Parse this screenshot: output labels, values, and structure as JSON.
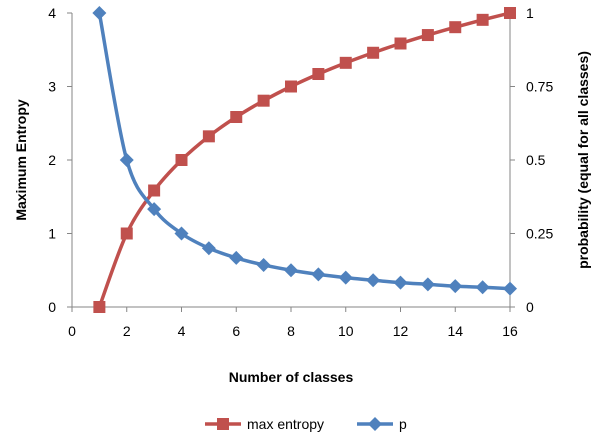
{
  "chart_data": {
    "type": "line",
    "xlabel": "Number of classes",
    "ylabel_left": "Maximum Entropy",
    "ylabel_right": "probability (equal for all classes)",
    "xlim": [
      0,
      16
    ],
    "ylim_left": [
      0,
      4
    ],
    "ylim_right": [
      0,
      1
    ],
    "x_ticks": [
      "0",
      "2",
      "4",
      "6",
      "8",
      "10",
      "12",
      "14",
      "16"
    ],
    "y_left_ticks": [
      "0",
      "1",
      "2",
      "3",
      "4"
    ],
    "y_right_ticks": [
      "0",
      "0.25",
      "0.5",
      "0.75",
      "1"
    ],
    "x": [
      1,
      2,
      3,
      4,
      5,
      6,
      7,
      8,
      9,
      10,
      11,
      12,
      13,
      14,
      15,
      16
    ],
    "series": [
      {
        "name": "max entropy",
        "axis": "left",
        "marker": "square",
        "color": "#C0504D",
        "values": [
          0,
          1,
          1.585,
          2,
          2.322,
          2.585,
          2.807,
          3,
          3.17,
          3.322,
          3.459,
          3.585,
          3.7,
          3.807,
          3.907,
          4
        ]
      },
      {
        "name": "p",
        "axis": "right",
        "marker": "diamond",
        "color": "#4F81BD",
        "values": [
          1,
          0.5,
          0.333,
          0.25,
          0.2,
          0.167,
          0.143,
          0.125,
          0.111,
          0.1,
          0.091,
          0.083,
          0.077,
          0.071,
          0.067,
          0.0625
        ]
      }
    ],
    "grid": false,
    "legend_position": "bottom"
  }
}
